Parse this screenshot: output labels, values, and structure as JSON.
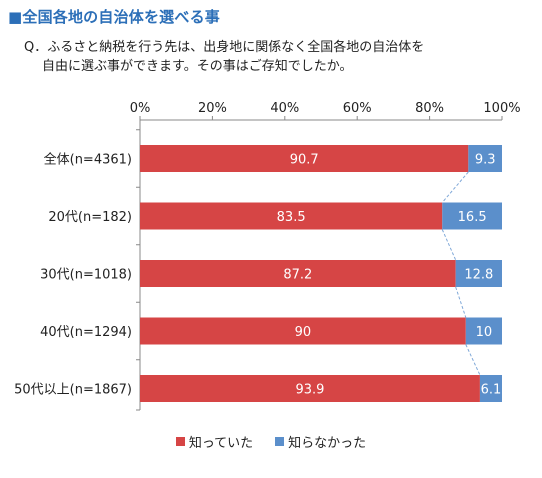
{
  "title": "■全国各地の自治体を選べる事",
  "question": {
    "line1": "Q．ふるさと納税を行う先は、出身地に関係なく全国各地の自治体を",
    "line2": "自由に選ぶ事ができます。その事はご存知でしたか。"
  },
  "colors": {
    "known": "#d64545",
    "unknown": "#5b8fcb",
    "connector": "#7fa8d8"
  },
  "chart_data": {
    "type": "bar",
    "orientation": "horizontal",
    "stacked": true,
    "percent_stacked": true,
    "categories": [
      "全体(n=4361)",
      "20代(n=182)",
      "30代(n=1018)",
      "40代(n=1294)",
      "50代以上(n=1867)"
    ],
    "series": [
      {
        "name": "知っていた",
        "values": [
          90.7,
          83.5,
          87.2,
          90,
          93.9
        ]
      },
      {
        "name": "知らなかった",
        "values": [
          9.3,
          16.5,
          12.8,
          10,
          6.1
        ]
      }
    ],
    "x_ticks": [
      "0%",
      "20%",
      "40%",
      "60%",
      "80%",
      "100%"
    ],
    "xlim": [
      0,
      100
    ],
    "legend": "bottom",
    "grid": false
  }
}
